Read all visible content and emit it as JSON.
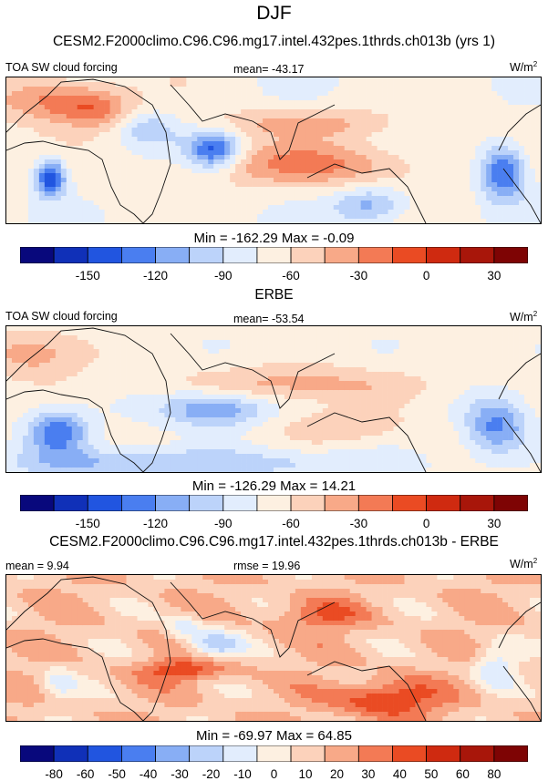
{
  "page": {
    "season": "DJF"
  },
  "colors": {
    "palette": [
      "#08087c",
      "#1030b8",
      "#2155e0",
      "#4a7ef0",
      "#88aef5",
      "#bcd3fa",
      "#e2edfd",
      "#fdf0e1",
      "#fcd2bb",
      "#f8a988",
      "#f37a55",
      "#ea4b23",
      "#cf2a10",
      "#a8160a",
      "#7e0404"
    ],
    "coast": "#111111"
  },
  "chart_data": [
    {
      "type": "heatmap",
      "title": "CESM2.F2000climo.C96.C96.mg17.intel.432pes.1thrds.ch013b (yrs 1)",
      "left_label": "TOA SW cloud forcing",
      "stat_label": "mean= -43.17",
      "units_base": "W/m",
      "units_exp": "2",
      "minmax": "Min = -162.29 Max =  -0.09",
      "colorbar_ticks": [
        "-150",
        "-120",
        "-90",
        "-60",
        "-30",
        "0",
        "30"
      ],
      "mean": -43.17,
      "min": -162.29,
      "max": -0.09
    },
    {
      "type": "heatmap",
      "title": "ERBE",
      "left_label": "TOA SW cloud forcing",
      "stat_label": "mean= -53.54",
      "units_base": "W/m",
      "units_exp": "2",
      "minmax": "Min = -126.29 Max =  14.21",
      "colorbar_ticks": [
        "-150",
        "-120",
        "-90",
        "-60",
        "-30",
        "0",
        "30"
      ],
      "mean": -53.54,
      "min": -126.29,
      "max": 14.21
    },
    {
      "type": "heatmap",
      "title": "CESM2.F2000climo.C96.C96.mg17.intel.432pes.1thrds.ch013b - ERBE",
      "left_label": "mean =   9.94",
      "stat_label": "rmse =  19.96",
      "units_base": "W/m",
      "units_exp": "2",
      "minmax": "Min = -69.97 Max =  64.85",
      "colorbar_ticks": [
        "-80",
        "-60",
        "-50",
        "-40",
        "-30",
        "-20",
        "-10",
        "0",
        "10",
        "20",
        "30",
        "40",
        "50",
        "60",
        "80"
      ],
      "mean": 9.94,
      "rmse": 19.96,
      "min": -69.97,
      "max": 64.85
    }
  ]
}
